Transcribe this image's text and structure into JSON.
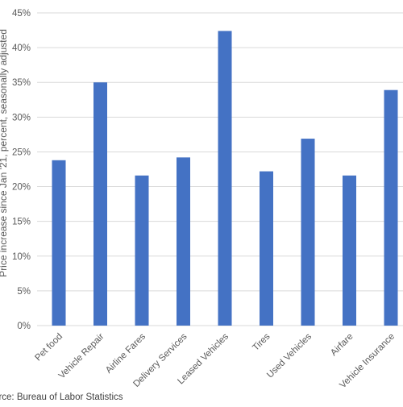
{
  "chart_data": {
    "type": "bar",
    "title": "",
    "xlabel": "",
    "ylabel": "Price increase since Jan '21, percent, seasonally adjusted",
    "categories": [
      "Pet food",
      "Vehicle Repair",
      "Airline Fares",
      "Delivery Services",
      "Leased Vehicles",
      "Tires",
      "Used Vehicles",
      "Airfare",
      "Vehicle Insurance"
    ],
    "values": [
      23.8,
      35.0,
      21.6,
      24.2,
      42.4,
      22.2,
      26.9,
      21.6,
      33.9
    ],
    "ylim": [
      0,
      45
    ],
    "yticks": [
      0,
      5,
      10,
      15,
      20,
      25,
      30,
      35,
      40,
      45
    ],
    "ytick_labels": [
      "0%",
      "5%",
      "10%",
      "15%",
      "20%",
      "25%",
      "30%",
      "35%",
      "40%",
      "45%"
    ],
    "grid": true,
    "legend": "none",
    "bar_color": "#4472C4",
    "grid_color": "#d9d9d9",
    "text_color": "#595959",
    "source": "Source: Bureau of Labor Statistics"
  }
}
